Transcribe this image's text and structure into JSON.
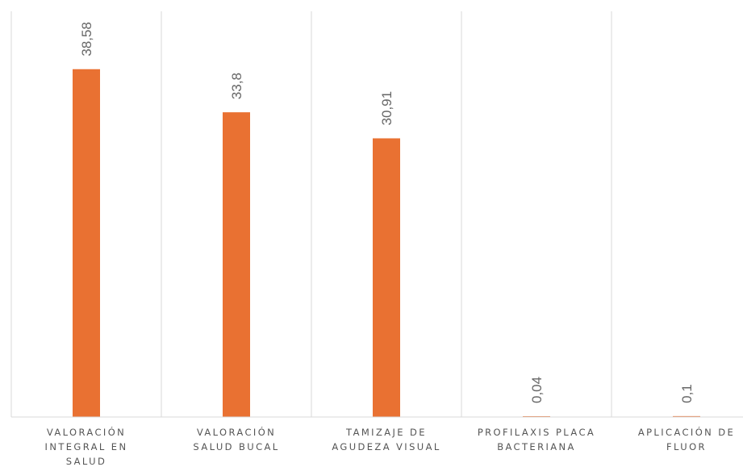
{
  "chart_data": {
    "type": "bar",
    "title": "",
    "xlabel": "",
    "ylabel": "",
    "ylim": [
      0,
      45
    ],
    "grid": "vertical-separators",
    "legend": "none",
    "categories": [
      [
        "VALORACIÓN",
        "INTEGRAL EN",
        "SALUD"
      ],
      [
        "VALORACIÓN",
        "SALUD BUCAL"
      ],
      [
        "TAMIZAJE DE",
        "AGUDEZA VISUAL"
      ],
      [
        "PROFILAXIS PLACA",
        "BACTERIANA"
      ],
      [
        "APLICACIÓN DE",
        "FLUOR"
      ]
    ],
    "values": [
      38.58,
      33.8,
      30.91,
      0.04,
      0.1
    ],
    "data_labels": [
      "38,58",
      "33,8",
      "30,91",
      "0,04",
      "0,1"
    ],
    "colors": {
      "bar": "#E97132",
      "grid": "#D9D9D9",
      "axis": "#D9D9D9"
    }
  }
}
